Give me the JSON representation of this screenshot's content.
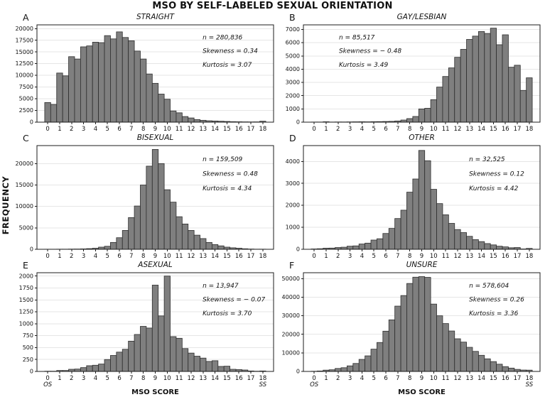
{
  "figure": {
    "title": "MSO BY SELF-LABELED SEXUAL ORIENTATION",
    "ylabel": "FREQUENCY",
    "xlabel": "MSO SCORE",
    "x_left_sublabel": "OS",
    "x_right_sublabel": "SS",
    "xticks": [
      0,
      1,
      2,
      3,
      4,
      5,
      6,
      7,
      8,
      9,
      10,
      11,
      12,
      13,
      14,
      15,
      16,
      17,
      18
    ],
    "xlim": [
      -0.9,
      18.9
    ],
    "bin_start": 0,
    "bin_step": 0.5,
    "bar_width": 0.5,
    "colors": {
      "bar_fill": "#7f7f7f",
      "bar_edge": "#2d2d2d",
      "grid": "#e6e6e6",
      "axis": "#1c1c1c",
      "text": "#111111"
    }
  },
  "chart_data": [
    {
      "type": "bar",
      "panel": "A",
      "title": "STRAIGHT",
      "annotations": [
        "n = 280,836",
        "Skewness = 0.34",
        "Kurtosis = 3.07"
      ],
      "annotation_side": "right",
      "n": 280836,
      "skewness": 0.34,
      "kurtosis": 3.07,
      "ylim": [
        0,
        20800
      ],
      "yticks": [
        0,
        2500,
        5000,
        7500,
        10000,
        12500,
        15000,
        17500,
        20000
      ],
      "show_xlabel": false,
      "values": [
        4200,
        3800,
        10500,
        9900,
        14000,
        13500,
        16100,
        16300,
        17100,
        17000,
        18500,
        17800,
        19300,
        18100,
        17400,
        15200,
        13500,
        10300,
        8300,
        6000,
        4900,
        2400,
        2000,
        1200,
        900,
        550,
        400,
        300,
        250,
        200,
        150,
        100,
        80,
        60,
        50,
        60,
        200
      ]
    },
    {
      "type": "bar",
      "panel": "B",
      "title": "GAY/LESBIAN",
      "annotations": [
        "n = 85,517",
        "Skewness = − 0.48",
        "Kurtosis = 3.49"
      ],
      "annotation_side": "left",
      "n": 85517,
      "skewness": -0.48,
      "kurtosis": 3.49,
      "ylim": [
        0,
        7350
      ],
      "yticks": [
        0,
        1000,
        2000,
        3000,
        4000,
        5000,
        6000,
        7000
      ],
      "show_xlabel": false,
      "values": [
        10,
        10,
        30,
        10,
        15,
        15,
        20,
        25,
        30,
        25,
        35,
        40,
        50,
        60,
        90,
        160,
        270,
        430,
        1000,
        1050,
        1700,
        2650,
        3450,
        4100,
        4900,
        5500,
        6250,
        6500,
        6850,
        6700,
        7100,
        5850,
        6600,
        4150,
        4300,
        2400,
        3350
      ]
    },
    {
      "type": "bar",
      "panel": "C",
      "title": "BISEXUAL",
      "annotations": [
        "n = 159,509",
        "Skewness = 0.48",
        "Kurtosis = 4.34"
      ],
      "annotation_side": "right",
      "n": 159509,
      "skewness": 0.48,
      "kurtosis": 4.34,
      "ylim": [
        0,
        24200
      ],
      "yticks": [
        0,
        5000,
        10000,
        15000,
        20000
      ],
      "show_xlabel": false,
      "values": [
        20,
        20,
        30,
        30,
        50,
        60,
        90,
        150,
        250,
        500,
        700,
        1600,
        2700,
        4400,
        7400,
        10100,
        15000,
        19400,
        23300,
        20000,
        13900,
        11000,
        7600,
        5900,
        4400,
        3300,
        2500,
        1600,
        1100,
        800,
        500,
        350,
        250,
        120,
        60,
        30,
        30
      ]
    },
    {
      "type": "bar",
      "panel": "D",
      "title": "OTHER",
      "annotations": [
        "n = 32,525",
        "Skewness = 0.12",
        "Kurtosis = 4.42"
      ],
      "annotation_side": "right",
      "n": 32525,
      "skewness": 0.12,
      "kurtosis": 4.42,
      "ylim": [
        0,
        4720
      ],
      "yticks": [
        0,
        1000,
        2000,
        3000,
        4000
      ],
      "show_xlabel": false,
      "values": [
        15,
        25,
        50,
        55,
        80,
        95,
        140,
        155,
        240,
        280,
        420,
        480,
        720,
        950,
        1400,
        1780,
        2600,
        3200,
        4500,
        4030,
        2730,
        2080,
        1570,
        1180,
        900,
        760,
        590,
        440,
        350,
        260,
        200,
        140,
        110,
        70,
        80,
        15,
        40
      ]
    },
    {
      "type": "bar",
      "panel": "E",
      "title": "ASEXUAL",
      "annotations": [
        "n = 13,947",
        "Skewness = − 0.07",
        "Kurtosis = 3.70"
      ],
      "annotation_side": "right",
      "n": 13947,
      "skewness": -0.07,
      "kurtosis": 3.7,
      "ylim": [
        0,
        2070
      ],
      "yticks": [
        0,
        250,
        500,
        750,
        1000,
        1250,
        1500,
        1750,
        2000
      ],
      "show_xlabel": true,
      "values": [
        5,
        5,
        20,
        20,
        45,
        50,
        80,
        120,
        130,
        155,
        250,
        335,
        405,
        465,
        635,
        775,
        945,
        910,
        1810,
        1165,
        2000,
        730,
        695,
        480,
        385,
        320,
        280,
        210,
        225,
        105,
        110,
        45,
        40,
        30,
        10,
        5,
        10
      ]
    },
    {
      "type": "bar",
      "panel": "F",
      "title": "UNSURE",
      "annotations": [
        "n = 578,604",
        "Skewness = 0.26",
        "Kurtosis = 3.36"
      ],
      "annotation_side": "right",
      "n": 578604,
      "skewness": 0.26,
      "kurtosis": 3.36,
      "ylim": [
        0,
        53200
      ],
      "yticks": [
        0,
        10000,
        20000,
        30000,
        40000,
        50000
      ],
      "show_xlabel": true,
      "values": [
        100,
        250,
        700,
        900,
        1600,
        2000,
        3000,
        4300,
        6500,
        8400,
        12000,
        15600,
        21700,
        27800,
        35200,
        40900,
        47400,
        50800,
        51100,
        50700,
        36300,
        30000,
        25800,
        21800,
        17600,
        15800,
        13000,
        10800,
        8700,
        6800,
        5300,
        3900,
        2600,
        1800,
        1100,
        750,
        700
      ]
    }
  ]
}
